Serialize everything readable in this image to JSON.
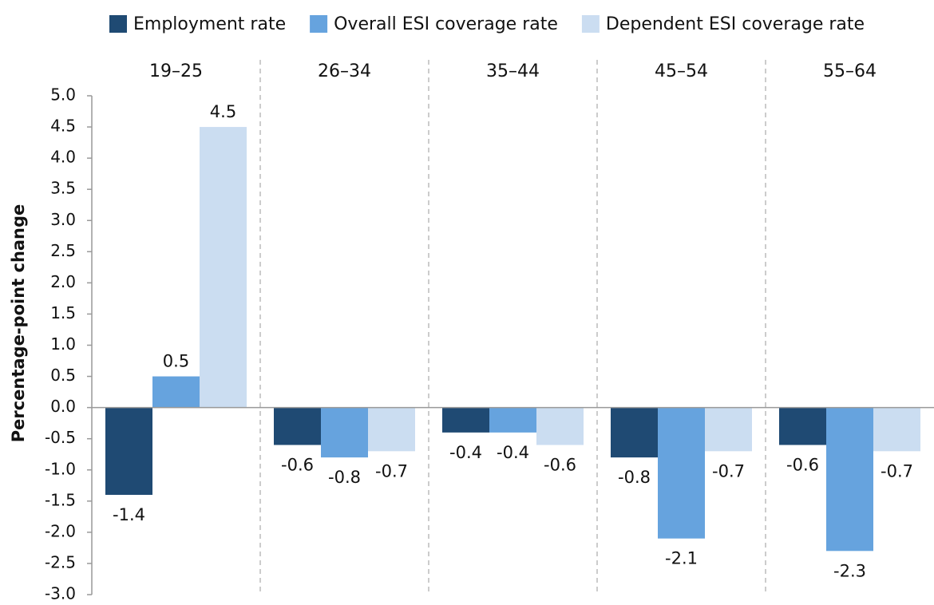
{
  "chart_data": {
    "type": "bar",
    "y_label": "Percentage-point change",
    "categories": [
      "19–25",
      "26–34",
      "35–44",
      "45–54",
      "55–64"
    ],
    "series": [
      {
        "name": "Employment rate",
        "color": "#1f4a73",
        "values": [
          -1.4,
          -0.6,
          -0.4,
          -0.8,
          -0.6
        ]
      },
      {
        "name": "Overall ESI coverage rate",
        "color": "#66a3de",
        "values": [
          0.5,
          -0.8,
          -0.4,
          -2.1,
          -2.3
        ]
      },
      {
        "name": "Dependent ESI coverage rate",
        "color": "#cbddf1",
        "values": [
          4.5,
          -0.7,
          -0.6,
          -0.7,
          -0.7
        ]
      }
    ],
    "ylim": [
      -3,
      5
    ],
    "yticks": [
      {
        "value": 5,
        "label": "5.0"
      },
      {
        "value": 4.5,
        "label": "4.5"
      },
      {
        "value": 4,
        "label": "4.0"
      },
      {
        "value": 3.5,
        "label": "3.5"
      },
      {
        "value": 3,
        "label": "3.0"
      },
      {
        "value": 2.5,
        "label": "2.5"
      },
      {
        "value": 2,
        "label": "2.0"
      },
      {
        "value": 1.5,
        "label": "1.5"
      },
      {
        "value": 1,
        "label": "1.0"
      },
      {
        "value": 0.5,
        "label": "0.5"
      },
      {
        "value": 0,
        "label": "0.0"
      },
      {
        "value": -0.5,
        "label": "-0.5"
      },
      {
        "value": -1,
        "label": "-1.0"
      },
      {
        "value": -1.5,
        "label": "-1.5"
      },
      {
        "value": -2,
        "label": "-2.0"
      },
      {
        "value": -2.5,
        "label": "-2.5"
      },
      {
        "value": -3,
        "label": "-3.0"
      }
    ],
    "legend": "top"
  }
}
